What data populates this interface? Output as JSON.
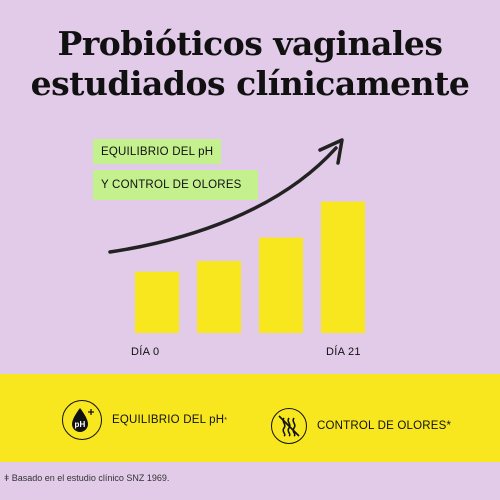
{
  "title_line1": "Probióticos vaginales",
  "title_line2": "estudiados clínicamente",
  "tags": {
    "ph": "EQUILIBRIO DEL pH",
    "odor": "Y CONTROL DE OLORES"
  },
  "chart_data": {
    "type": "bar",
    "categories": [
      "DÍA 0",
      "",
      "",
      "DÍA 21"
    ],
    "values": [
      34,
      40,
      53,
      73
    ],
    "ylim": [
      0,
      100
    ],
    "bar_color": "#f8e71f",
    "trend_arrow": "increasing"
  },
  "features": {
    "ph_label": "EQUILIBRIO DEL pH",
    "ph_mark": "*",
    "ph_icon_text": "pH",
    "odor_label": "CONTROL DE OLORES*"
  },
  "footnote": "ǂ Basado en el estudio clínico SNZ 1969.",
  "colors": {
    "background": "#e1cbe8",
    "accent_yellow": "#f8e71f",
    "accent_green": "#c4f08e"
  },
  "icons": {
    "ph": "ph-drop-icon",
    "odor": "odor-waves-icon"
  }
}
